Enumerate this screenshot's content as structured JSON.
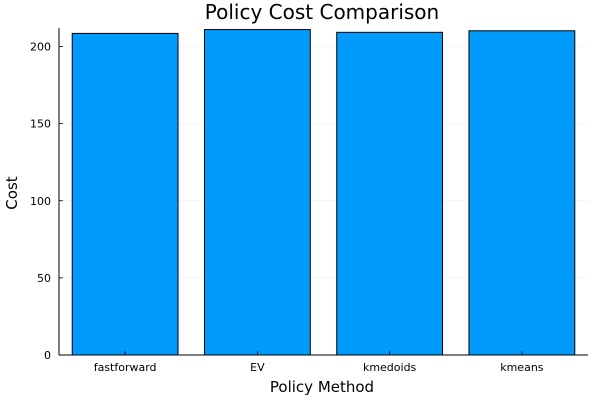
{
  "chart_data": {
    "type": "bar",
    "title": "Policy Cost Comparison",
    "xlabel": "Policy Method",
    "ylabel": "Cost",
    "categories": [
      "fastforward",
      "EV",
      "kmedoids",
      "kmeans"
    ],
    "values": [
      208.5,
      211.0,
      209.2,
      210.2
    ],
    "ylim": [
      0,
      212
    ],
    "yticks": [
      0,
      50,
      100,
      150,
      200
    ],
    "grid": true,
    "legend": "none",
    "bar_color": "#009AFA",
    "bar_edge_color": "#000000"
  }
}
